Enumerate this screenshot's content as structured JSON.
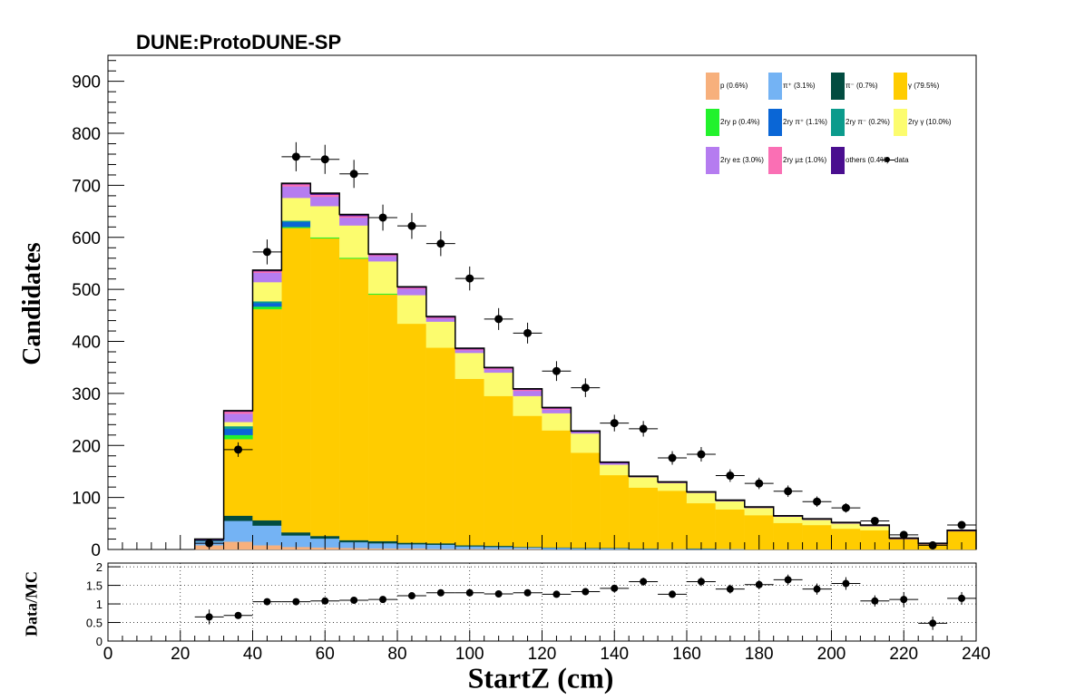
{
  "header": {
    "title": "DUNE:ProtoDUNE-SP"
  },
  "colors": {
    "p": "#f7b07c",
    "pi_plus": "#74b3f4",
    "pi_minus": "#024c40",
    "gamma": "#ffcc00",
    "ry2_p": "#22f22c",
    "ry2_pi_plus": "#0a66d6",
    "ry2_pi_minus": "#0b9b8c",
    "ry2_gamma": "#fcfc6e",
    "ry2_e": "#b57cf0",
    "ry2_mu": "#fa6fb4",
    "others": "#4a0e8f",
    "data": "#000000"
  },
  "chart_data": [
    {
      "type": "bar",
      "subtype": "stacked-histogram-with-data",
      "title": "DUNE:ProtoDUNE-SP",
      "xlabel": "StartZ (cm)",
      "ylabel": "Candidates",
      "xlim": [
        0,
        240
      ],
      "ylim": [
        0,
        950
      ],
      "xticks": [
        "0",
        "20",
        "40",
        "60",
        "80",
        "100",
        "120",
        "140",
        "160",
        "180",
        "200",
        "220",
        "240"
      ],
      "yticks": [
        "0",
        "100",
        "200",
        "300",
        "400",
        "500",
        "600",
        "700",
        "800",
        "900"
      ],
      "grid": false,
      "legend_placement": "top-right",
      "bin_edges": [
        24,
        32,
        40,
        48,
        56,
        64,
        72,
        80,
        88,
        96,
        104,
        112,
        120,
        128,
        136,
        144,
        152,
        160,
        168,
        176,
        184,
        192,
        200,
        208,
        216,
        224,
        232,
        240
      ],
      "series": [
        {
          "name": "p (0.6%)",
          "color_key": "p",
          "values": [
            8,
            15,
            8,
            5,
            4,
            3,
            2,
            2,
            1,
            1,
            1,
            1,
            0,
            0,
            0,
            0,
            0,
            0,
            0,
            0,
            0,
            0,
            0,
            0,
            0,
            0,
            0
          ]
        },
        {
          "name": "π⁺ (3.1%)",
          "color_key": "pi_plus",
          "values": [
            8,
            40,
            38,
            22,
            17,
            11,
            10,
            8,
            8,
            5,
            4,
            3,
            3,
            2,
            2,
            1,
            1,
            1,
            1,
            0,
            0,
            0,
            0,
            0,
            0,
            0,
            0
          ]
        },
        {
          "name": "π⁻ (0.7%)",
          "color_key": "pi_minus",
          "values": [
            2,
            10,
            10,
            6,
            5,
            4,
            4,
            3,
            3,
            2,
            2,
            1,
            1,
            1,
            1,
            1,
            0,
            1,
            0,
            0,
            0,
            0,
            0,
            0,
            0,
            0,
            0
          ]
        },
        {
          "name": "γ (79.5%)",
          "color_key": "gamma",
          "values": [
            0,
            147,
            406,
            585,
            572,
            541,
            474,
            421,
            376,
            320,
            288,
            252,
            225,
            183,
            140,
            117,
            112,
            87,
            76,
            66,
            51,
            47,
            40,
            37,
            20,
            10,
            35
          ]
        },
        {
          "name": "2ry p (0.4%)",
          "color_key": "ry2_p",
          "values": [
            0,
            8,
            5,
            2,
            2,
            2,
            2,
            0,
            0,
            0,
            0,
            0,
            0,
            0,
            0,
            0,
            0,
            0,
            0,
            0,
            0,
            0,
            0,
            0,
            0,
            0,
            0
          ]
        },
        {
          "name": "2ry π⁺ (1.1%)",
          "color_key": "ry2_pi_plus",
          "values": [
            0,
            12,
            7,
            10,
            0,
            0,
            0,
            0,
            0,
            0,
            0,
            0,
            0,
            0,
            0,
            0,
            0,
            0,
            0,
            0,
            0,
            0,
            0,
            0,
            0,
            0,
            0
          ]
        },
        {
          "name": "2ry π⁻ (0.2%)",
          "color_key": "ry2_pi_minus",
          "values": [
            0,
            5,
            3,
            2,
            0,
            0,
            0,
            0,
            0,
            0,
            0,
            0,
            0,
            0,
            0,
            0,
            0,
            0,
            0,
            0,
            0,
            0,
            0,
            0,
            0,
            0,
            0
          ]
        },
        {
          "name": "2ry γ (10.0%)",
          "color_key": "ry2_gamma",
          "values": [
            0,
            8,
            37,
            44,
            60,
            62,
            62,
            55,
            50,
            50,
            45,
            38,
            33,
            37,
            20,
            20,
            15,
            20,
            16,
            14,
            12,
            10,
            10,
            8,
            0,
            0,
            0
          ]
        },
        {
          "name": "2ry e± (3.0%)",
          "color_key": "ry2_e",
          "values": [
            0,
            16,
            18,
            22,
            18,
            15,
            10,
            12,
            6,
            5,
            6,
            10,
            7,
            3,
            3,
            0,
            0,
            0,
            0,
            0,
            0,
            0,
            0,
            0,
            0,
            0,
            0
          ]
        },
        {
          "name": "2ry μ± (1.0%)",
          "color_key": "ry2_mu",
          "values": [
            0,
            4,
            3,
            4,
            4,
            3,
            2,
            2,
            2,
            2,
            2,
            2,
            2,
            0,
            0,
            0,
            0,
            0,
            0,
            0,
            0,
            0,
            0,
            0,
            0,
            0,
            0
          ]
        },
        {
          "name": "others (0.4%)",
          "color_key": "others",
          "values": [
            2,
            2,
            2,
            2,
            3,
            3,
            2,
            2,
            2,
            2,
            2,
            2,
            2,
            2,
            2,
            2,
            2,
            2,
            2,
            2,
            2,
            2,
            2,
            2,
            2,
            2,
            2
          ]
        }
      ],
      "data_series": {
        "name": "data",
        "x": [
          28,
          36,
          44,
          52,
          60,
          68,
          76,
          84,
          92,
          100,
          108,
          116,
          124,
          132,
          140,
          148,
          156,
          164,
          172,
          180,
          188,
          196,
          204,
          212,
          220,
          228,
          236
        ],
        "y": [
          12,
          192,
          572,
          755,
          750,
          722,
          638,
          622,
          588,
          521,
          443,
          416,
          343,
          311,
          243,
          232,
          176,
          183,
          142,
          127,
          112,
          92,
          80,
          55,
          28,
          8,
          47
        ],
        "yerr": [
          4,
          14,
          24,
          28,
          28,
          27,
          25,
          25,
          24,
          23,
          21,
          20,
          19,
          18,
          16,
          15,
          13,
          14,
          12,
          11,
          11,
          10,
          9,
          7,
          5,
          3,
          7
        ]
      }
    },
    {
      "type": "scatter",
      "title": "",
      "xlabel": "StartZ (cm)",
      "ylabel": "Data/MC",
      "xlim": [
        0,
        240
      ],
      "ylim": [
        0,
        2.1
      ],
      "xticks": [
        "0",
        "20",
        "40",
        "60",
        "80",
        "100",
        "120",
        "140",
        "160",
        "180",
        "200",
        "220",
        "240"
      ],
      "yticks": [
        "0",
        "0.5",
        "1",
        "1.5",
        "2"
      ],
      "grid": true,
      "x": [
        28,
        36,
        44,
        52,
        60,
        68,
        76,
        84,
        92,
        100,
        108,
        116,
        124,
        132,
        140,
        148,
        156,
        164,
        172,
        180,
        188,
        196,
        204,
        212,
        220,
        228,
        236
      ],
      "y": [
        0.65,
        0.69,
        1.06,
        1.06,
        1.08,
        1.1,
        1.12,
        1.22,
        1.3,
        1.3,
        1.27,
        1.3,
        1.26,
        1.33,
        1.42,
        1.6,
        1.26,
        1.6,
        1.4,
        1.52,
        1.65,
        1.4,
        1.55,
        1.08,
        1.12,
        0.48,
        1.15
      ],
      "yerr": [
        0.2,
        0.07,
        0.06,
        0.05,
        0.05,
        0.05,
        0.06,
        0.06,
        0.07,
        0.07,
        0.07,
        0.08,
        0.08,
        0.09,
        0.1,
        0.11,
        0.1,
        0.12,
        0.12,
        0.12,
        0.14,
        0.15,
        0.17,
        0.15,
        0.2,
        0.18,
        0.17
      ]
    }
  ]
}
